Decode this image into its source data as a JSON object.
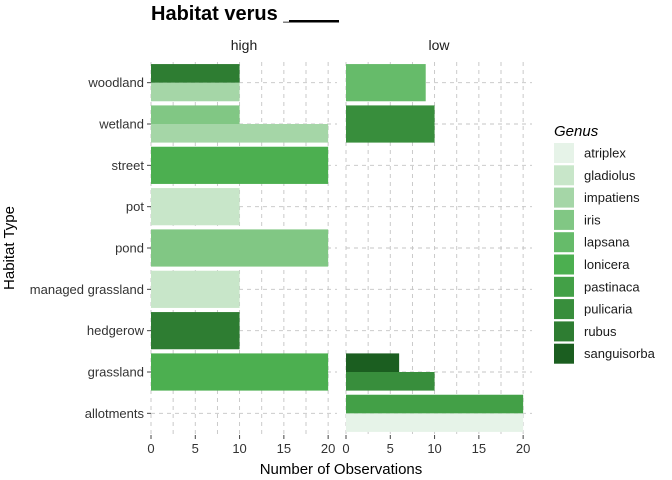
{
  "chart_data": {
    "type": "bar",
    "orientation": "horizontal",
    "stacking": "dodge",
    "title": "Habitat verus _____",
    "xlabel": "Number of Observations",
    "ylabel": "Habitat Type",
    "xlim": [
      0,
      21
    ],
    "x_ticks": [
      "0",
      "5",
      "10",
      "15",
      "20"
    ],
    "x_tick_values": [
      0,
      5,
      10,
      15,
      20
    ],
    "grid": true,
    "legend_position": "right",
    "legend_title": "Genus",
    "categories": [
      "allotments",
      "grassland",
      "hedgerow",
      "managed grassland",
      "pond",
      "pot",
      "street",
      "wetland",
      "woodland"
    ],
    "genera": [
      {
        "name": "atriplex",
        "color": "#e6f3e8"
      },
      {
        "name": "gladiolus",
        "color": "#c8e6c9"
      },
      {
        "name": "impatiens",
        "color": "#a5d6a7"
      },
      {
        "name": "iris",
        "color": "#81c784"
      },
      {
        "name": "lapsana",
        "color": "#66bb6a"
      },
      {
        "name": "lonicera",
        "color": "#4caf50"
      },
      {
        "name": "pastinaca",
        "color": "#43a047"
      },
      {
        "name": "pulicaria",
        "color": "#388e3c"
      },
      {
        "name": "rubus",
        "color": "#2e7d32"
      },
      {
        "name": "sanguisorba",
        "color": "#1b5e20"
      }
    ],
    "facets": [
      {
        "label": "high",
        "bars": [
          {
            "category": "grassland",
            "genus": "lonicera",
            "value": 20
          },
          {
            "category": "hedgerow",
            "genus": "rubus",
            "value": 10
          },
          {
            "category": "managed grassland",
            "genus": "gladiolus",
            "value": 10
          },
          {
            "category": "pond",
            "genus": "iris",
            "value": 20
          },
          {
            "category": "pot",
            "genus": "gladiolus",
            "value": 10
          },
          {
            "category": "street",
            "genus": "lonicera",
            "value": 20
          },
          {
            "category": "wetland",
            "genus": "impatiens",
            "value": 20
          },
          {
            "category": "wetland",
            "genus": "iris",
            "value": 10
          },
          {
            "category": "woodland",
            "genus": "impatiens",
            "value": 10
          },
          {
            "category": "woodland",
            "genus": "rubus",
            "value": 10
          }
        ]
      },
      {
        "label": "low",
        "bars": [
          {
            "category": "allotments",
            "genus": "atriplex",
            "value": 20
          },
          {
            "category": "allotments",
            "genus": "pastinaca",
            "value": 20
          },
          {
            "category": "grassland",
            "genus": "pulicaria",
            "value": 10
          },
          {
            "category": "grassland",
            "genus": "sanguisorba",
            "value": 6
          },
          {
            "category": "wetland",
            "genus": "pulicaria",
            "value": 10
          },
          {
            "category": "woodland",
            "genus": "lapsana",
            "value": 9
          }
        ]
      }
    ]
  }
}
